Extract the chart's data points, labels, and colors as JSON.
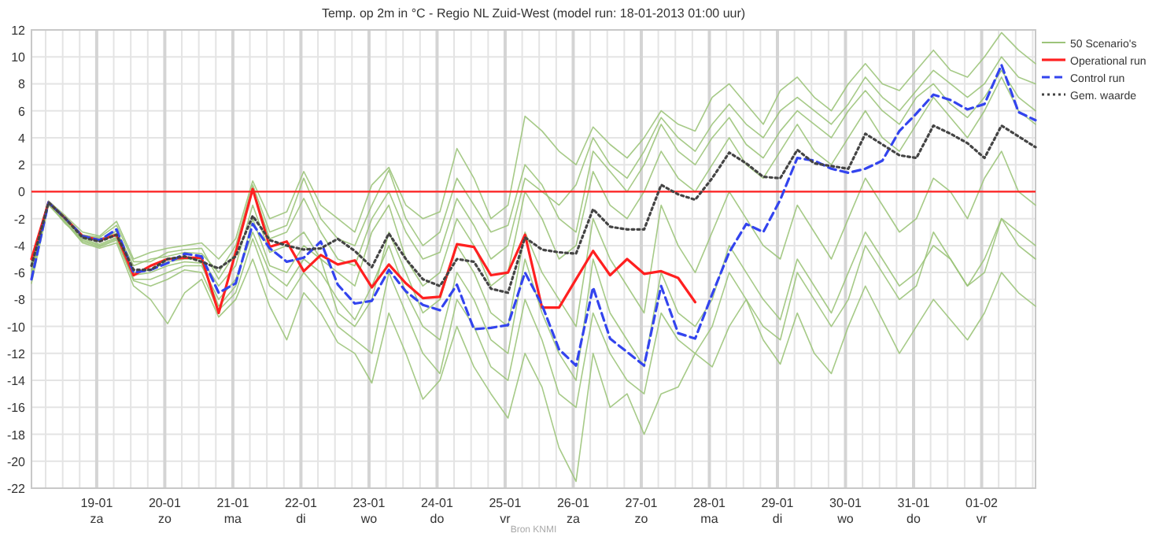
{
  "chart_data": {
    "type": "line",
    "title": "Temp. op 2m in °C - Regio NL Zuid-West (model run: 18-01-2013 01:00 uur)",
    "annotations": [
      "Bron KNMI"
    ],
    "x": [
      "2013-01-18T01:00",
      "2013-01-18T07:00",
      "2013-01-18T13:00",
      "2013-01-18T19:00",
      "2013-01-19T01:00",
      "2013-01-19T07:00",
      "2013-01-19T13:00",
      "2013-01-19T19:00",
      "2013-01-20T01:00",
      "2013-01-20T07:00",
      "2013-01-20T13:00",
      "2013-01-20T19:00",
      "2013-01-21T01:00",
      "2013-01-21T07:00",
      "2013-01-21T13:00",
      "2013-01-21T19:00",
      "2013-01-22T01:00",
      "2013-01-22T07:00",
      "2013-01-22T13:00",
      "2013-01-22T19:00",
      "2013-01-23T01:00",
      "2013-01-23T07:00",
      "2013-01-23T13:00",
      "2013-01-23T19:00",
      "2013-01-24T01:00",
      "2013-01-24T07:00",
      "2013-01-24T13:00",
      "2013-01-24T19:00",
      "2013-01-25T01:00",
      "2013-01-25T07:00",
      "2013-01-25T13:00",
      "2013-01-25T19:00",
      "2013-01-26T01:00",
      "2013-01-26T07:00",
      "2013-01-26T13:00",
      "2013-01-26T19:00",
      "2013-01-27T01:00",
      "2013-01-27T07:00",
      "2013-01-27T13:00",
      "2013-01-27T19:00",
      "2013-01-28T01:00",
      "2013-01-28T07:00",
      "2013-01-28T13:00",
      "2013-01-28T19:00",
      "2013-01-29T01:00",
      "2013-01-29T07:00",
      "2013-01-29T13:00",
      "2013-01-29T19:00",
      "2013-01-30T01:00",
      "2013-01-30T07:00",
      "2013-01-30T13:00",
      "2013-01-30T19:00",
      "2013-01-31T01:00",
      "2013-01-31T07:00",
      "2013-01-31T13:00",
      "2013-01-31T19:00",
      "2013-02-01T01:00",
      "2013-02-01T07:00",
      "2013-02-01T13:00",
      "2013-02-01T19:00"
    ],
    "series": [
      {
        "name": "50 Scenario's",
        "color": "#9cc47a",
        "values": [
          -5.5,
          -0.7,
          -1.8,
          -3,
          -3.3,
          -2.2,
          -5,
          -4.5,
          -4.2,
          -4,
          -3.8,
          -5,
          -3.5,
          0.8,
          -2,
          -1.5,
          1.5,
          -1,
          -2,
          -3,
          0.5,
          1.8,
          -1,
          -2,
          -1.5,
          3.2,
          1,
          -2,
          -1,
          5.6,
          4.5,
          3,
          2,
          4.8,
          3.5,
          2.5,
          4,
          6,
          5,
          4.5,
          7,
          8,
          6.5,
          5,
          7.5,
          8.5,
          7,
          6,
          8,
          9.5,
          8,
          7.5,
          9,
          10.5,
          9,
          8.5,
          10,
          11.8,
          10.5,
          9.5
        ]
      },
      {
        "color": "#9cc47a",
        "values": [
          -6.8,
          -1,
          -2.3,
          -3.8,
          -4.2,
          -3.8,
          -7,
          -8,
          -9.8,
          -7.5,
          -6.5,
          -9.3,
          -8,
          -5,
          -8.5,
          -11,
          -7.5,
          -9,
          -11.2,
          -12,
          -14.2,
          -9,
          -12,
          -15.4,
          -14,
          -10,
          -13,
          -15,
          -16.8,
          -12,
          -14.5,
          -19,
          -21.5,
          -12,
          -16,
          -15,
          -18,
          -15,
          -14.5,
          -12,
          -13,
          -10,
          -8,
          -11,
          -12.8,
          -9,
          -12,
          -13.5,
          -10,
          -7,
          -9.5,
          -12,
          -10,
          -8,
          -9.5,
          -11,
          -9,
          -6,
          -7.5,
          -8.5
        ]
      },
      {
        "color": "#9cc47a",
        "values": [
          -5.2,
          -0.9,
          -2,
          -3.4,
          -3.7,
          -2.9,
          -5.5,
          -5,
          -4.8,
          -4.5,
          -4.6,
          -6,
          -4,
          0.5,
          -3,
          -2.5,
          1,
          -2,
          -3.5,
          -4,
          -1,
          1.6,
          -2,
          -4,
          -3,
          1,
          -1,
          -3,
          -2.5,
          2,
          0.5,
          -2,
          -3,
          3,
          1.5,
          0,
          2,
          5,
          3,
          2,
          4,
          5.5,
          3.5,
          2.5,
          4.5,
          6,
          5,
          4,
          6,
          7.5,
          6,
          5,
          7,
          8,
          6.5,
          5.5,
          7,
          9,
          7,
          6
        ]
      },
      {
        "color": "#9cc47a",
        "values": [
          -6,
          -0.8,
          -2.2,
          -3.6,
          -4,
          -3.5,
          -6.5,
          -6.5,
          -6,
          -5.5,
          -5.5,
          -8,
          -6.5,
          -3,
          -6,
          -7,
          -5,
          -6,
          -8,
          -9.5,
          -7,
          -4,
          -7.5,
          -10,
          -11,
          -6,
          -8,
          -11,
          -12,
          -5,
          -9,
          -12,
          -14,
          -5,
          -9,
          -11,
          -13,
          -6,
          -9,
          -10,
          -8,
          -4,
          -6,
          -8,
          -9.5,
          -5,
          -7,
          -9,
          -6,
          -3,
          -5,
          -7,
          -6,
          -4,
          -5,
          -7,
          -5,
          -2,
          -4,
          -5
        ]
      },
      {
        "color": "#9cc47a",
        "values": [
          -5.8,
          -0.8,
          -2.1,
          -3.3,
          -3.5,
          -3.1,
          -6,
          -5.8,
          -5.2,
          -5,
          -5,
          -7,
          -5.5,
          -1,
          -4.5,
          -4,
          -3,
          -5,
          -6,
          -7,
          -3,
          -1,
          -5,
          -7,
          -6,
          -2,
          -4,
          -7,
          -6,
          0,
          -2,
          -5,
          -4,
          1.5,
          -1,
          -2,
          0,
          3,
          1,
          0,
          2,
          4,
          2,
          1,
          3,
          5,
          3,
          2,
          4,
          6,
          4,
          3,
          5,
          7,
          5.5,
          4,
          6,
          8.5,
          6,
          5
        ]
      },
      {
        "color": "#9cc47a",
        "values": [
          -6.2,
          -0.9,
          -2.4,
          -3.5,
          -3.9,
          -3.4,
          -6.2,
          -6,
          -5.5,
          -5.2,
          -5.3,
          -8.5,
          -7,
          -2,
          -5.5,
          -6,
          -4,
          -5,
          -9,
          -10,
          -8,
          -3,
          -6,
          -9,
          -8,
          -4,
          -6,
          -9,
          -10,
          -3,
          -6,
          -8,
          -10,
          -2,
          -5,
          -7,
          -9,
          -1,
          -4,
          -6,
          -3,
          0,
          -2,
          -4,
          -5,
          -1,
          -3,
          -5,
          -2,
          1,
          -1,
          -3,
          -2,
          1,
          0,
          -2,
          1,
          3,
          0,
          -1
        ]
      },
      {
        "color": "#9cc47a",
        "values": [
          -5,
          -0.7,
          -1.9,
          -3.2,
          -3.4,
          -2.5,
          -5.2,
          -5.2,
          -4.5,
          -4.3,
          -4.2,
          -6.5,
          -4.5,
          0.2,
          -3.5,
          -3,
          -0.5,
          -3,
          -5,
          -5.5,
          -2,
          0,
          -3,
          -5,
          -4.5,
          -0.5,
          -2.5,
          -5,
          -4,
          1,
          0,
          -1,
          0.5,
          4,
          2,
          1,
          3,
          5.5,
          4,
          3,
          5,
          6.5,
          5,
          4,
          6,
          7,
          6,
          5,
          6.5,
          8.5,
          7,
          6,
          7.5,
          9,
          8,
          7,
          8,
          10,
          8.5,
          8
        ]
      },
      {
        "color": "#9cc47a",
        "values": [
          -6.4,
          -0.9,
          -2.3,
          -3.7,
          -4.1,
          -3.6,
          -6.6,
          -7,
          -6.5,
          -5.8,
          -6,
          -8.8,
          -7.5,
          -3.5,
          -7,
          -8,
          -6,
          -7.5,
          -10,
          -11,
          -12,
          -6,
          -9,
          -12,
          -13.5,
          -8,
          -10,
          -13,
          -14,
          -8,
          -11,
          -15,
          -16,
          -9,
          -12,
          -14,
          -15,
          -9,
          -11,
          -12,
          -10,
          -6,
          -8,
          -10,
          -11,
          -6,
          -8,
          -10,
          -8,
          -4,
          -6,
          -8,
          -7,
          -3,
          -5,
          -7,
          -6,
          -2,
          -3,
          -4
        ]
      },
      {
        "name": "Operational run",
        "color": "#ff2020",
        "line_style": "solid",
        "values": [
          -5,
          -0.8,
          -2,
          -3.3,
          -3.6,
          -3.2,
          -6.2,
          -5.5,
          -5,
          -4.9,
          -4.9,
          -9,
          -4.5,
          0.2,
          -4.1,
          -3.7,
          -5.9,
          -4.7,
          -5.4,
          -5.1,
          -7.1,
          -5.4,
          -6.8,
          -7.9,
          -7.8,
          -3.9,
          -4.1,
          -6.2,
          -6,
          -3.2,
          -8.6,
          -8.6,
          -6.5,
          -4.4,
          -6.2,
          -5,
          -6.1,
          -5.9,
          -6.4,
          -8.2,
          null,
          null,
          null,
          null,
          null,
          null,
          null,
          null,
          null,
          null,
          null,
          null,
          null,
          null,
          null,
          null,
          null,
          null,
          null,
          null
        ]
      },
      {
        "name": "Control run",
        "color": "#3344ee",
        "line_style": "dashed",
        "values": [
          -6.5,
          -0.8,
          -2,
          -3.3,
          -3.6,
          -2.8,
          -6,
          -5.8,
          -5.3,
          -4.6,
          -4.8,
          -7.5,
          -6.8,
          -2.4,
          -4.2,
          -5.2,
          -4.9,
          -3.7,
          -6.9,
          -8.3,
          -8.1,
          -5.8,
          -7.4,
          -8.4,
          -8.8,
          -6.9,
          -10.2,
          -10.1,
          -9.9,
          -6,
          -8.4,
          -11.7,
          -12.9,
          -7.1,
          -10.9,
          -11.9,
          -12.9,
          -7,
          -10.5,
          -10.9,
          -7.6,
          -4.5,
          -2.4,
          -3,
          -0.6,
          2.5,
          2.3,
          1.7,
          1.4,
          1.7,
          2.3,
          4.5,
          5.8,
          7.2,
          6.8,
          6.1,
          6.5,
          9.4,
          5.9,
          5.3
        ]
      },
      {
        "name": "Gem. waarde",
        "color": "#444444",
        "line_style": "dotted",
        "values": [
          -5.5,
          -0.8,
          -2,
          -3.4,
          -3.7,
          -3.2,
          -5.8,
          -5.8,
          -5,
          -4.8,
          -5.2,
          -5.7,
          -4.8,
          -1.8,
          -3.6,
          -4,
          -4.3,
          -4.2,
          -3.5,
          -4.4,
          -5.6,
          -3.1,
          -5,
          -6.5,
          -7,
          -5,
          -5.2,
          -7.2,
          -7.5,
          -3.4,
          -4.3,
          -4.5,
          -4.6,
          -1.3,
          -2.6,
          -2.8,
          -2.8,
          0.5,
          -0.2,
          -0.6,
          1,
          2.9,
          2.1,
          1.1,
          1,
          3.1,
          2.1,
          1.9,
          1.7,
          4.3,
          3.5,
          2.7,
          2.5,
          4.9,
          4.3,
          3.6,
          2.5,
          4.9,
          4.1,
          3.3
        ]
      }
    ],
    "xlim": [
      "2013-01-18T01:00",
      "2013-02-01T19:00"
    ],
    "xticks": [
      {
        "value": "2013-01-18T06:00",
        "label": null
      },
      {
        "value": "2013-01-18T12:00",
        "label": null
      },
      {
        "value": "2013-01-18T18:00",
        "label": null
      },
      {
        "value": "2013-01-19T00:00",
        "label": "19-01\nza"
      },
      {
        "value": "2013-01-19T06:00",
        "label": null
      },
      {
        "value": "2013-01-19T12:00",
        "label": null
      },
      {
        "value": "2013-01-19T18:00",
        "label": null
      },
      {
        "value": "2013-01-20T00:00",
        "label": "20-01\nzo"
      },
      {
        "value": "2013-01-20T06:00",
        "label": null
      },
      {
        "value": "2013-01-20T12:00",
        "label": null
      },
      {
        "value": "2013-01-20T18:00",
        "label": null
      },
      {
        "value": "2013-01-21T00:00",
        "label": "21-01\nma"
      },
      {
        "value": "2013-01-21T06:00",
        "label": null
      },
      {
        "value": "2013-01-21T12:00",
        "label": null
      },
      {
        "value": "2013-01-21T18:00",
        "label": null
      },
      {
        "value": "2013-01-22T00:00",
        "label": "22-01\ndi"
      },
      {
        "value": "2013-01-22T06:00",
        "label": null
      },
      {
        "value": "2013-01-22T12:00",
        "label": null
      },
      {
        "value": "2013-01-22T18:00",
        "label": null
      },
      {
        "value": "2013-01-23T00:00",
        "label": "23-01\nwo"
      },
      {
        "value": "2013-01-23T06:00",
        "label": null
      },
      {
        "value": "2013-01-23T12:00",
        "label": null
      },
      {
        "value": "2013-01-23T18:00",
        "label": null
      },
      {
        "value": "2013-01-24T00:00",
        "label": "24-01\ndo"
      },
      {
        "value": "2013-01-24T06:00",
        "label": null
      },
      {
        "value": "2013-01-24T12:00",
        "label": null
      },
      {
        "value": "2013-01-24T18:00",
        "label": null
      },
      {
        "value": "2013-01-25T00:00",
        "label": "25-01\nvr"
      },
      {
        "value": "2013-01-25T06:00",
        "label": null
      },
      {
        "value": "2013-01-25T12:00",
        "label": null
      },
      {
        "value": "2013-01-25T18:00",
        "label": null
      },
      {
        "value": "2013-01-26T00:00",
        "label": "26-01\nza"
      },
      {
        "value": "2013-01-26T06:00",
        "label": null
      },
      {
        "value": "2013-01-26T12:00",
        "label": null
      },
      {
        "value": "2013-01-26T18:00",
        "label": null
      },
      {
        "value": "2013-01-27T00:00",
        "label": "27-01\nzo"
      },
      {
        "value": "2013-01-27T06:00",
        "label": null
      },
      {
        "value": "2013-01-27T12:00",
        "label": null
      },
      {
        "value": "2013-01-27T18:00",
        "label": null
      },
      {
        "value": "2013-01-28T00:00",
        "label": "28-01\nma"
      },
      {
        "value": "2013-01-28T06:00",
        "label": null
      },
      {
        "value": "2013-01-28T12:00",
        "label": null
      },
      {
        "value": "2013-01-28T18:00",
        "label": null
      },
      {
        "value": "2013-01-29T00:00",
        "label": "29-01\ndi"
      },
      {
        "value": "2013-01-29T06:00",
        "label": null
      },
      {
        "value": "2013-01-29T12:00",
        "label": null
      },
      {
        "value": "2013-01-29T18:00",
        "label": null
      },
      {
        "value": "2013-01-30T00:00",
        "label": "30-01\nwo"
      },
      {
        "value": "2013-01-30T06:00",
        "label": null
      },
      {
        "value": "2013-01-30T12:00",
        "label": null
      },
      {
        "value": "2013-01-30T18:00",
        "label": null
      },
      {
        "value": "2013-01-31T00:00",
        "label": "31-01\ndo"
      },
      {
        "value": "2013-01-31T06:00",
        "label": null
      },
      {
        "value": "2013-01-31T12:00",
        "label": null
      },
      {
        "value": "2013-01-31T18:00",
        "label": null
      },
      {
        "value": "2013-02-01T00:00",
        "label": "01-02\nvr"
      },
      {
        "value": "2013-02-01T06:00",
        "label": null
      },
      {
        "value": "2013-02-01T12:00",
        "label": null
      },
      {
        "value": "2013-02-01T18:00",
        "label": null
      }
    ],
    "ylim": [
      -22,
      12
    ],
    "yticks": [
      -22,
      -20,
      -18,
      -16,
      -14,
      -12,
      -10,
      -8,
      -6,
      -4,
      -2,
      0,
      2,
      4,
      6,
      8,
      10,
      12
    ],
    "ref_lines": [
      {
        "axis": "y",
        "value": 0,
        "color": "#ff2020"
      }
    ],
    "grid": true,
    "legend": "top right",
    "line_style": "solid",
    "marker": "none"
  }
}
